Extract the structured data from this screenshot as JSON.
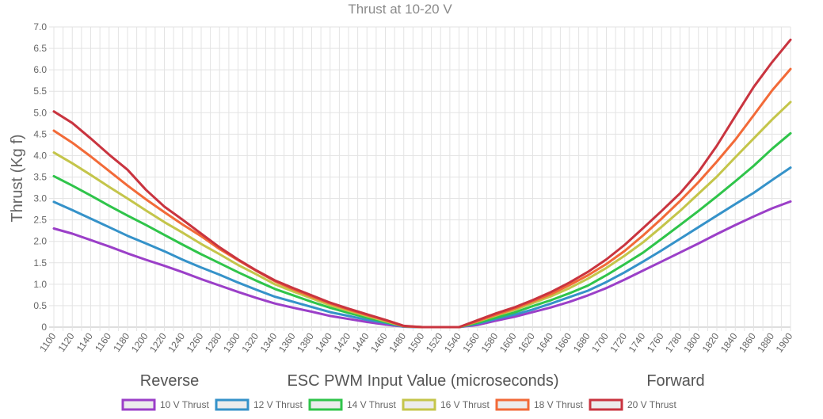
{
  "chart_data": {
    "type": "line",
    "title": "Thrust at 10-20 V",
    "ylabel": "Thrust (Kg f)",
    "xlabel": "ESC PWM Input Value (microseconds)",
    "annotations": {
      "left": "Reverse",
      "right": "Forward"
    },
    "xlim": [
      1100,
      1900
    ],
    "ylim": [
      0,
      7.0
    ],
    "x_ticks": [
      1100,
      1120,
      1140,
      1160,
      1180,
      1200,
      1220,
      1240,
      1260,
      1280,
      1300,
      1320,
      1340,
      1360,
      1380,
      1400,
      1420,
      1440,
      1460,
      1480,
      1500,
      1520,
      1540,
      1560,
      1580,
      1600,
      1620,
      1640,
      1660,
      1680,
      1700,
      1720,
      1740,
      1760,
      1780,
      1800,
      1820,
      1840,
      1860,
      1880,
      1900
    ],
    "y_ticks": [
      "0",
      "0.5",
      "1.0",
      "1.5",
      "2.0",
      "2.5",
      "3.0",
      "3.5",
      "4.0",
      "4.5",
      "5.0",
      "5.5",
      "6.0",
      "6.5",
      "7.0"
    ],
    "grid": true,
    "legend_position": "bottom",
    "x": [
      1100,
      1120,
      1140,
      1160,
      1180,
      1200,
      1220,
      1240,
      1260,
      1280,
      1300,
      1320,
      1340,
      1360,
      1380,
      1400,
      1420,
      1440,
      1460,
      1480,
      1500,
      1520,
      1540,
      1560,
      1580,
      1600,
      1620,
      1640,
      1660,
      1680,
      1700,
      1720,
      1740,
      1760,
      1780,
      1800,
      1820,
      1840,
      1860,
      1880,
      1900
    ],
    "series": [
      {
        "name": "10 V Thrust",
        "color": "#9b3fc8",
        "values": [
          2.3,
          2.18,
          2.03,
          1.88,
          1.72,
          1.57,
          1.43,
          1.28,
          1.12,
          0.97,
          0.82,
          0.68,
          0.55,
          0.45,
          0.36,
          0.26,
          0.19,
          0.12,
          0.06,
          0.01,
          0.0,
          0.0,
          0.0,
          0.05,
          0.15,
          0.24,
          0.35,
          0.46,
          0.59,
          0.74,
          0.91,
          1.11,
          1.32,
          1.53,
          1.74,
          1.95,
          2.17,
          2.38,
          2.58,
          2.77,
          2.93
        ]
      },
      {
        "name": "12 V Thrust",
        "color": "#3592c9",
        "values": [
          2.92,
          2.73,
          2.53,
          2.33,
          2.13,
          1.95,
          1.77,
          1.57,
          1.39,
          1.22,
          1.04,
          0.87,
          0.71,
          0.59,
          0.47,
          0.35,
          0.26,
          0.17,
          0.1,
          0.01,
          0.0,
          0.0,
          0.0,
          0.08,
          0.19,
          0.29,
          0.41,
          0.55,
          0.7,
          0.85,
          1.05,
          1.28,
          1.53,
          1.79,
          2.06,
          2.33,
          2.6,
          2.87,
          3.13,
          3.43,
          3.72
        ]
      },
      {
        "name": "14 V Thrust",
        "color": "#2fc44a",
        "values": [
          3.52,
          3.3,
          3.07,
          2.83,
          2.6,
          2.38,
          2.15,
          1.92,
          1.7,
          1.49,
          1.28,
          1.08,
          0.89,
          0.74,
          0.59,
          0.45,
          0.33,
          0.22,
          0.12,
          0.02,
          0.0,
          0.0,
          0.0,
          0.1,
          0.22,
          0.34,
          0.49,
          0.63,
          0.79,
          0.97,
          1.21,
          1.47,
          1.74,
          2.06,
          2.38,
          2.71,
          3.05,
          3.4,
          3.76,
          4.16,
          4.52
        ]
      },
      {
        "name": "16 V Thrust",
        "color": "#c4c54a",
        "values": [
          4.07,
          3.82,
          3.55,
          3.27,
          3.0,
          2.72,
          2.45,
          2.2,
          1.94,
          1.7,
          1.45,
          1.23,
          1.0,
          0.83,
          0.67,
          0.51,
          0.38,
          0.26,
          0.14,
          0.02,
          0.0,
          0.0,
          0.0,
          0.13,
          0.27,
          0.4,
          0.56,
          0.72,
          0.91,
          1.13,
          1.38,
          1.67,
          1.98,
          2.34,
          2.71,
          3.11,
          3.51,
          3.96,
          4.4,
          4.84,
          5.25
        ]
      },
      {
        "name": "18 V Thrust",
        "color": "#f26a38",
        "values": [
          4.58,
          4.3,
          3.98,
          3.64,
          3.3,
          2.98,
          2.68,
          2.39,
          2.12,
          1.82,
          1.56,
          1.31,
          1.07,
          0.88,
          0.71,
          0.55,
          0.41,
          0.28,
          0.16,
          0.02,
          0.0,
          0.0,
          0.0,
          0.14,
          0.29,
          0.43,
          0.6,
          0.77,
          0.98,
          1.21,
          1.47,
          1.78,
          2.14,
          2.53,
          2.94,
          3.38,
          3.86,
          4.37,
          4.94,
          5.52,
          6.02
        ]
      },
      {
        "name": "20 V Thrust",
        "color": "#c9343f",
        "values": [
          5.03,
          4.76,
          4.4,
          4.02,
          3.67,
          3.2,
          2.81,
          2.5,
          2.18,
          1.86,
          1.58,
          1.32,
          1.09,
          0.91,
          0.74,
          0.57,
          0.43,
          0.3,
          0.17,
          0.03,
          0.0,
          0.0,
          0.0,
          0.16,
          0.32,
          0.46,
          0.63,
          0.82,
          1.04,
          1.29,
          1.58,
          1.92,
          2.31,
          2.71,
          3.12,
          3.62,
          4.23,
          4.92,
          5.6,
          6.18,
          6.7
        ]
      }
    ]
  }
}
